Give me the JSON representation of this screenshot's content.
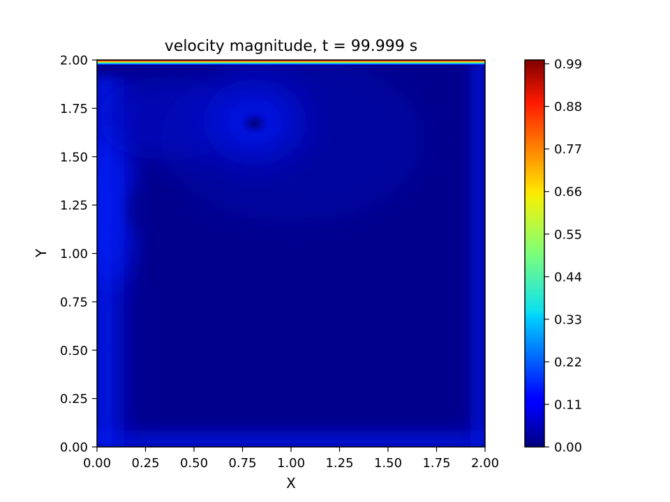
{
  "chart_data": {
    "type": "heatmap",
    "title": "velocity magnitude, t = 99.999 s",
    "xlabel": "X",
    "ylabel": "Y",
    "xlim": [
      0.0,
      2.0
    ],
    "ylim": [
      0.0,
      2.0
    ],
    "x_ticks": [
      "0.00",
      "0.25",
      "0.50",
      "0.75",
      "1.00",
      "1.25",
      "1.50",
      "1.75",
      "2.00"
    ],
    "y_ticks": [
      "0.00",
      "0.25",
      "0.50",
      "0.75",
      "1.00",
      "1.25",
      "1.50",
      "1.75",
      "2.00"
    ],
    "colormap": "jet",
    "colorbar": {
      "range": [
        0.0,
        1.0
      ],
      "ticks": [
        0.0,
        0.11,
        0.22,
        0.33,
        0.44,
        0.55,
        0.66,
        0.77,
        0.88,
        0.99
      ],
      "tick_labels": [
        "0.00",
        "0.11",
        "0.22",
        "0.33",
        "0.44",
        "0.55",
        "0.66",
        "0.77",
        "0.88",
        "0.99"
      ]
    },
    "field": {
      "description_of_values": "lid-driven cavity flow speed",
      "lid_value": 1.0,
      "interior_background_value": 0.03,
      "wall_band_value": 0.1,
      "features": [
        {
          "kind": "vortex_ring",
          "x": 0.8,
          "y": 1.68,
          "value": 0.1
        },
        {
          "kind": "vortex_center",
          "x": 0.82,
          "y": 1.67,
          "value": 0.03
        },
        {
          "kind": "left_wall_jet",
          "x": 0.05,
          "y": 1.2,
          "value": 0.12
        }
      ]
    },
    "grid": false
  }
}
